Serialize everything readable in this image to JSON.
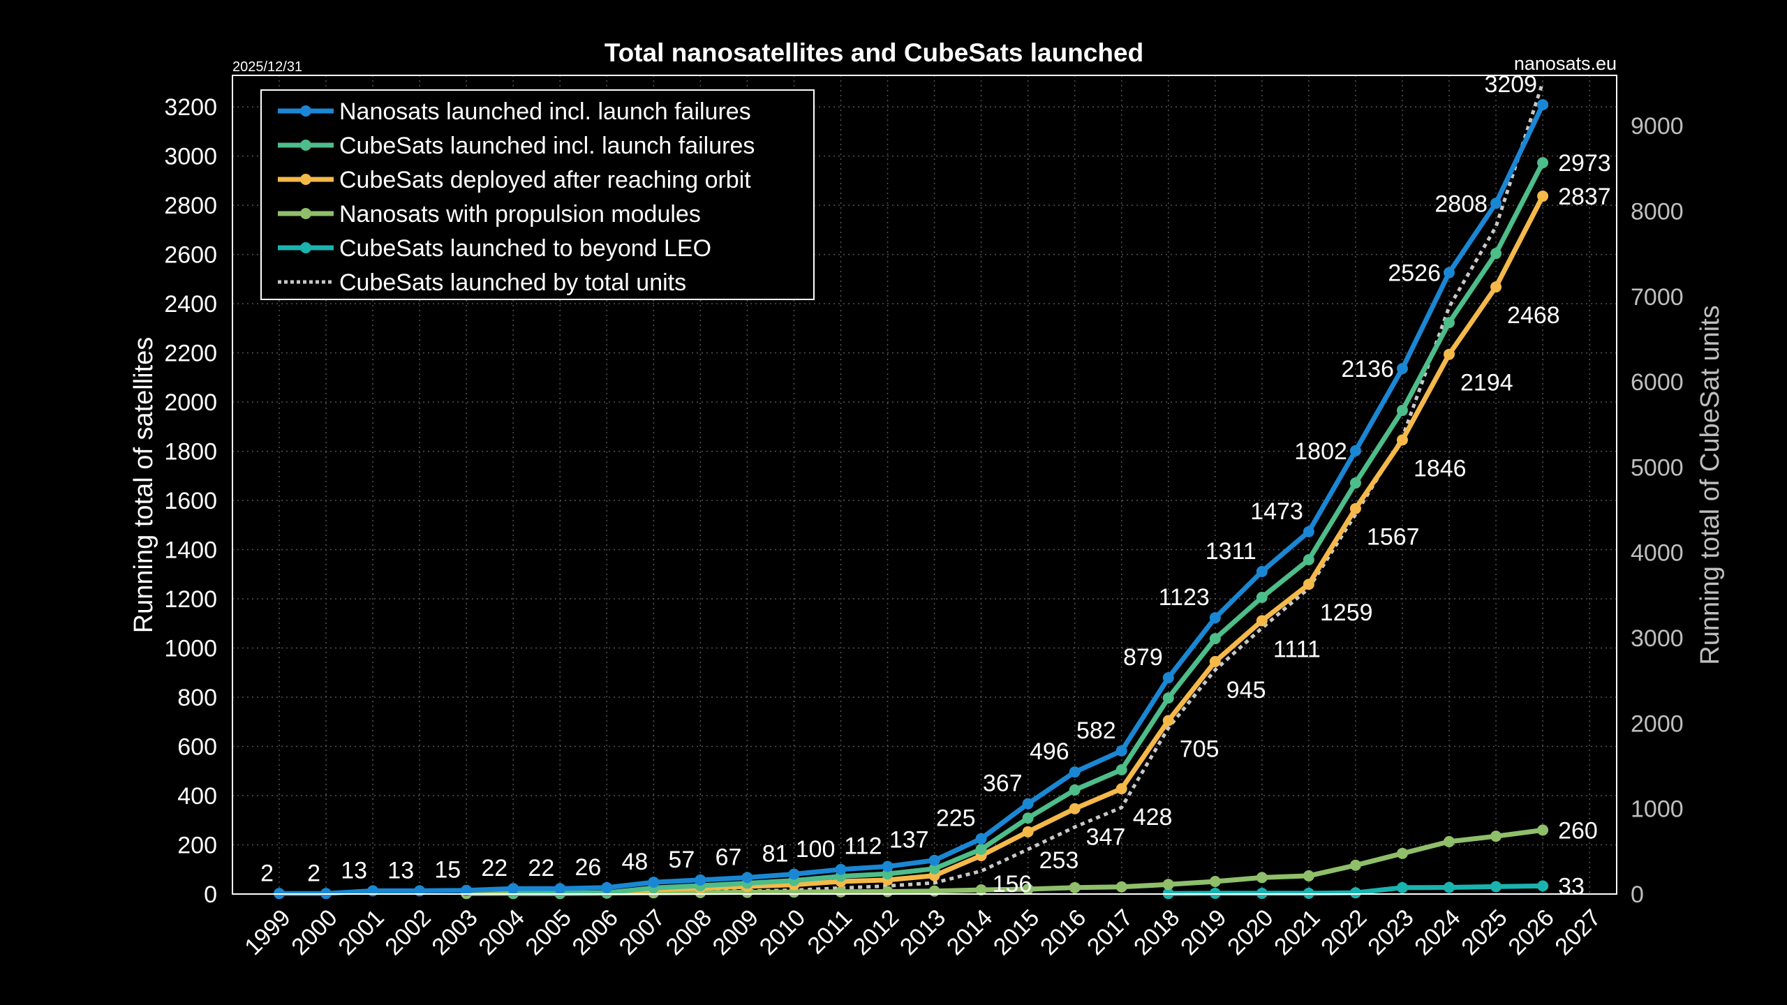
{
  "chart_data": {
    "type": "line",
    "title": "Total nanosatellites and CubeSats launched",
    "date_note": "2025/12/31",
    "source_note": "nanosats.eu",
    "xlabel": "",
    "ylabel": "Running total of satellites",
    "y2label": "Running total of CubeSat units",
    "grid": true,
    "legend_position": "top-left",
    "x_ticks": [
      "1999",
      "2000",
      "2001",
      "2002",
      "2003",
      "2004",
      "2005",
      "2006",
      "2007",
      "2008",
      "2009",
      "2010",
      "2011",
      "2012",
      "2013",
      "2014",
      "2015",
      "2016",
      "2017",
      "2018",
      "2019",
      "2020",
      "2021",
      "2022",
      "2023",
      "2024",
      "2025",
      "2026",
      "2027"
    ],
    "y_ticks": [
      0,
      200,
      400,
      600,
      800,
      1000,
      1200,
      1400,
      1600,
      1800,
      2000,
      2200,
      2400,
      2600,
      2800,
      3000,
      3200
    ],
    "y2_ticks": [
      0,
      1000,
      2000,
      3000,
      4000,
      5000,
      6000,
      7000,
      8000,
      9000
    ],
    "ylim": [
      0,
      3328
    ],
    "y2lim": [
      0,
      9590
    ],
    "xlim": [
      1998,
      2027.6
    ],
    "x": [
      1999,
      2000,
      2001,
      2002,
      2003,
      2004,
      2005,
      2006,
      2007,
      2008,
      2009,
      2010,
      2011,
      2012,
      2013,
      2014,
      2015,
      2016,
      2017,
      2018,
      2019,
      2020,
      2021,
      2022,
      2023,
      2024,
      2025,
      2026
    ],
    "series": [
      {
        "name": "Nanosats launched incl. launch failures",
        "color": "#1a87d4",
        "axis": "left",
        "style": "solid",
        "values": [
          2,
          2,
          13,
          13,
          15,
          22,
          22,
          26,
          48,
          57,
          67,
          81,
          100,
          112,
          137,
          225,
          367,
          496,
          582,
          879,
          1123,
          1311,
          1473,
          1802,
          2136,
          2526,
          2808,
          3209
        ],
        "labels": [
          {
            "i": 0,
            "text": "2",
            "pos": "above-left"
          },
          {
            "i": 1,
            "text": "2",
            "pos": "above-left"
          },
          {
            "i": 2,
            "text": "13",
            "pos": "above-left"
          },
          {
            "i": 3,
            "text": "13",
            "pos": "above-left"
          },
          {
            "i": 4,
            "text": "15",
            "pos": "above-left"
          },
          {
            "i": 5,
            "text": "22",
            "pos": "above-left"
          },
          {
            "i": 6,
            "text": "22",
            "pos": "above-left"
          },
          {
            "i": 7,
            "text": "26",
            "pos": "above-left"
          },
          {
            "i": 8,
            "text": "48",
            "pos": "above-left"
          },
          {
            "i": 9,
            "text": "57",
            "pos": "above-left"
          },
          {
            "i": 10,
            "text": "67",
            "pos": "above-left"
          },
          {
            "i": 11,
            "text": "81",
            "pos": "above-left"
          },
          {
            "i": 12,
            "text": "100",
            "pos": "above-left"
          },
          {
            "i": 13,
            "text": "112",
            "pos": "above-left"
          },
          {
            "i": 14,
            "text": "137",
            "pos": "above-left"
          },
          {
            "i": 15,
            "text": "225",
            "pos": "above-left"
          },
          {
            "i": 16,
            "text": "367",
            "pos": "above-left"
          },
          {
            "i": 17,
            "text": "496",
            "pos": "above-left"
          },
          {
            "i": 18,
            "text": "582",
            "pos": "above-left"
          },
          {
            "i": 19,
            "text": "879",
            "pos": "above-left"
          },
          {
            "i": 20,
            "text": "1123",
            "pos": "above-left"
          },
          {
            "i": 21,
            "text": "1311",
            "pos": "above-left"
          },
          {
            "i": 22,
            "text": "1473",
            "pos": "above-left"
          },
          {
            "i": 23,
            "text": "1802",
            "pos": "left"
          },
          {
            "i": 24,
            "text": "2136",
            "pos": "left"
          },
          {
            "i": 25,
            "text": "2526",
            "pos": "left"
          },
          {
            "i": 26,
            "text": "2808",
            "pos": "left"
          },
          {
            "i": 27,
            "text": "3209",
            "pos": "above-left"
          }
        ]
      },
      {
        "name": "CubeSats launched incl. launch failures",
        "color": "#4dbd8a",
        "axis": "left",
        "style": "solid",
        "values": [
          null,
          null,
          null,
          null,
          null,
          3,
          3,
          5,
          25,
          34,
          44,
          55,
          72,
          82,
          103,
          182,
          309,
          423,
          505,
          797,
          1038,
          1206,
          1359,
          1671,
          1966,
          2323,
          2604,
          2973
        ],
        "labels": [
          {
            "i": 27,
            "text": "2973",
            "pos": "right"
          }
        ]
      },
      {
        "name": "CubeSats deployed after reaching orbit",
        "color": "#f5b94a",
        "axis": "left",
        "style": "solid",
        "values": [
          null,
          null,
          null,
          null,
          null,
          2,
          2,
          4,
          18,
          24,
          31,
          38,
          51,
          57,
          75,
          156,
          253,
          347,
          428,
          705,
          945,
          1111,
          1259,
          1567,
          1846,
          2194,
          2468,
          2837
        ],
        "labels": [
          {
            "i": 15,
            "text": "156",
            "pos": "below-right"
          },
          {
            "i": 16,
            "text": "253",
            "pos": "below-right"
          },
          {
            "i": 17,
            "text": "347",
            "pos": "below-right"
          },
          {
            "i": 18,
            "text": "428",
            "pos": "below-right"
          },
          {
            "i": 19,
            "text": "705",
            "pos": "below-right"
          },
          {
            "i": 20,
            "text": "945",
            "pos": "below-right"
          },
          {
            "i": 21,
            "text": "1111",
            "pos": "below-right"
          },
          {
            "i": 22,
            "text": "1259",
            "pos": "below-right"
          },
          {
            "i": 23,
            "text": "1567",
            "pos": "below-right"
          },
          {
            "i": 24,
            "text": "1846",
            "pos": "below-right"
          },
          {
            "i": 25,
            "text": "2194",
            "pos": "below-right"
          },
          {
            "i": 26,
            "text": "2468",
            "pos": "below-right"
          },
          {
            "i": 27,
            "text": "2837",
            "pos": "right"
          }
        ]
      },
      {
        "name": "Nanosats with propulsion modules",
        "color": "#8fbf6a",
        "axis": "left",
        "style": "solid",
        "values": [
          null,
          null,
          null,
          null,
          2,
          3,
          3,
          4,
          5,
          6,
          7,
          8,
          9,
          10,
          12,
          17,
          20,
          26,
          29,
          39,
          51,
          67,
          74,
          117,
          165,
          213,
          235,
          260
        ],
        "labels": [
          {
            "i": 27,
            "text": "260",
            "pos": "right"
          }
        ]
      },
      {
        "name": "CubeSats launched to beyond LEO",
        "color": "#1ab3b0",
        "axis": "left",
        "style": "solid",
        "values": [
          null,
          null,
          null,
          null,
          null,
          null,
          null,
          null,
          null,
          null,
          null,
          null,
          null,
          null,
          null,
          null,
          null,
          null,
          null,
          2,
          3,
          3,
          3,
          5,
          26,
          27,
          30,
          33
        ],
        "labels": [
          {
            "i": 27,
            "text": "33",
            "pos": "right"
          }
        ]
      },
      {
        "name": "CubeSats launched by total units",
        "color": "#c8c8c8",
        "axis": "right",
        "style": "dotted",
        "values": [
          null,
          null,
          null,
          null,
          null,
          null,
          null,
          15,
          25,
          30,
          35,
          45,
          70,
          95,
          131,
          270,
          523,
          785,
          1014,
          1946,
          2625,
          3115,
          3581,
          4448,
          5348,
          6877,
          7817,
          9510
        ],
        "labels": []
      }
    ]
  }
}
